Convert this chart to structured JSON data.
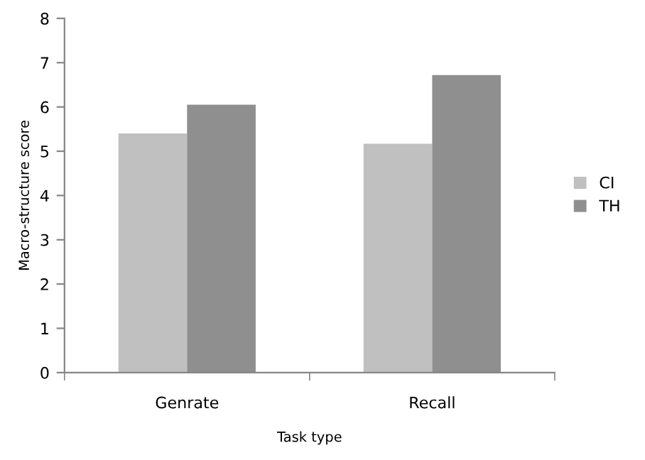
{
  "chart_data": {
    "type": "bar",
    "xlabel": "Task type",
    "ylabel": "Macro-structure score",
    "categories": [
      "Genrate",
      "Recall"
    ],
    "series": [
      {
        "name": "CI",
        "color": "#c0c0c0",
        "values": [
          5.4,
          5.17
        ]
      },
      {
        "name": "TH",
        "color": "#8f8f8f",
        "values": [
          6.05,
          6.72
        ]
      }
    ],
    "ylim": [
      0,
      8
    ],
    "yticks": [
      0,
      1,
      2,
      3,
      4,
      5,
      6,
      7,
      8
    ],
    "grid": false,
    "legend": "right"
  }
}
